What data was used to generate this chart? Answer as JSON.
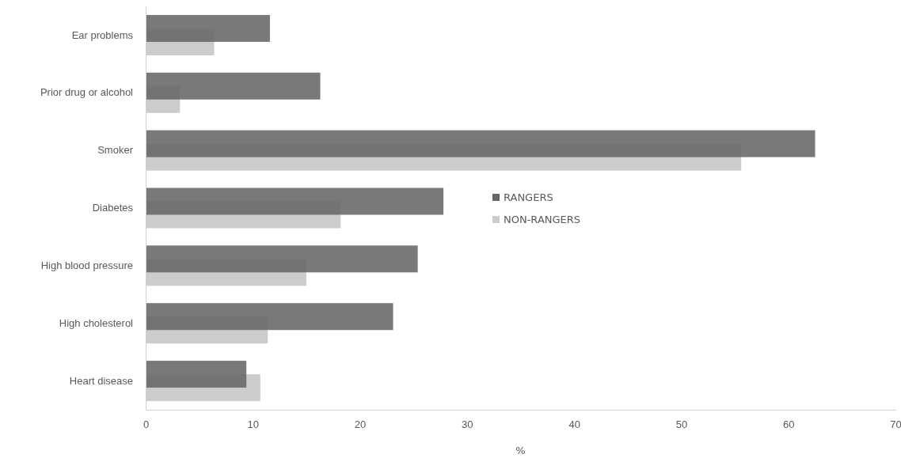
{
  "chart_data": {
    "type": "bar",
    "orientation": "horizontal",
    "xlabel": "%",
    "categories": [
      "Ear problems",
      "Prior drug or alcohol",
      "Smoker",
      "Diabetes",
      "High blood pressure",
      "High cholesterol",
      "Heart disease"
    ],
    "series": [
      {
        "name": "RANGERS",
        "color": "#666666",
        "values": [
          11.6,
          16.3,
          62.5,
          27.8,
          25.4,
          23.1,
          9.4
        ]
      },
      {
        "name": "NON-RANGERS",
        "color": "#cccccc",
        "values": [
          6.4,
          3.2,
          55.6,
          18.2,
          15.0,
          11.4,
          10.7
        ]
      }
    ],
    "xlim": [
      0,
      70
    ],
    "xticks": [
      0,
      10,
      20,
      30,
      40,
      50,
      60,
      70
    ],
    "grid": false,
    "legend": "center"
  }
}
